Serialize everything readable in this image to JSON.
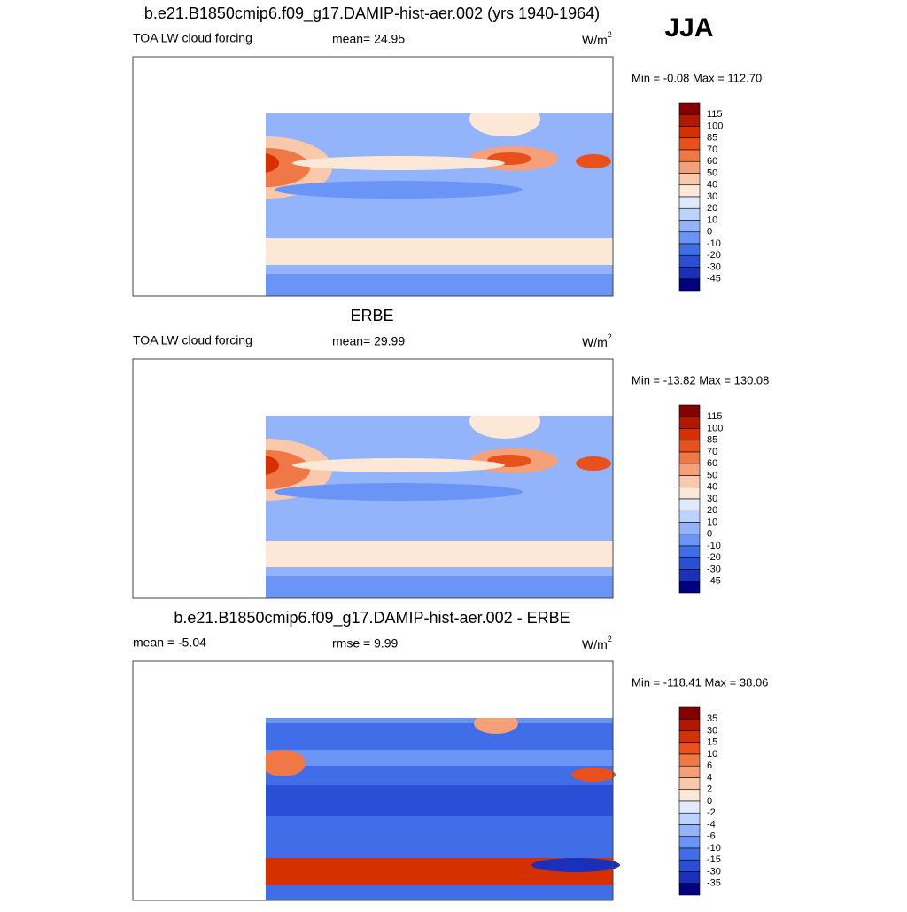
{
  "figure_label": "JJA",
  "colorbar_colors": [
    "#850000",
    "#b21800",
    "#d73000",
    "#e8501c",
    "#f07846",
    "#f5a078",
    "#fac8aa",
    "#fde8d8",
    "#dfeaff",
    "#bcd2ff",
    "#93b4fb",
    "#6a94f5",
    "#3f6ee8",
    "#2a4fd6",
    "#1a30b8",
    "#000080"
  ],
  "panels": [
    {
      "title": "b.e21.B1850cmip6.f09_g17.DAMIP-hist-aer.002 (yrs 1940-1964)",
      "left": "TOA LW cloud forcing",
      "center": "mean=  24.95",
      "units": "W/m",
      "units_power": "2",
      "range": "Min =  -0.08 Max = 112.70",
      "colorbar_labels": [
        "115",
        "100",
        "85",
        "70",
        "60",
        "50",
        "40",
        "30",
        "20",
        "10",
        "0",
        "-10",
        "-20",
        "-30",
        "-45"
      ]
    },
    {
      "title": "ERBE",
      "left": "TOA LW cloud forcing",
      "center": "mean=  29.99",
      "units": "W/m",
      "units_power": "2",
      "range": "Min = -13.82 Max = 130.08",
      "colorbar_labels": [
        "115",
        "100",
        "85",
        "70",
        "60",
        "50",
        "40",
        "30",
        "20",
        "10",
        "0",
        "-10",
        "-20",
        "-30",
        "-45"
      ]
    },
    {
      "title": "b.e21.B1850cmip6.f09_g17.DAMIP-hist-aer.002 - ERBE",
      "left": "mean =  -5.04",
      "center": "rmse =   9.99",
      "units": "W/m",
      "units_power": "2",
      "range": "Min = -118.41 Max =  38.06",
      "colorbar_labels": [
        "35",
        "30",
        "15",
        "10",
        "6",
        "4",
        "2",
        "0",
        "-2",
        "-4",
        "-6",
        "-10",
        "-15",
        "-30",
        "-35"
      ]
    }
  ]
}
